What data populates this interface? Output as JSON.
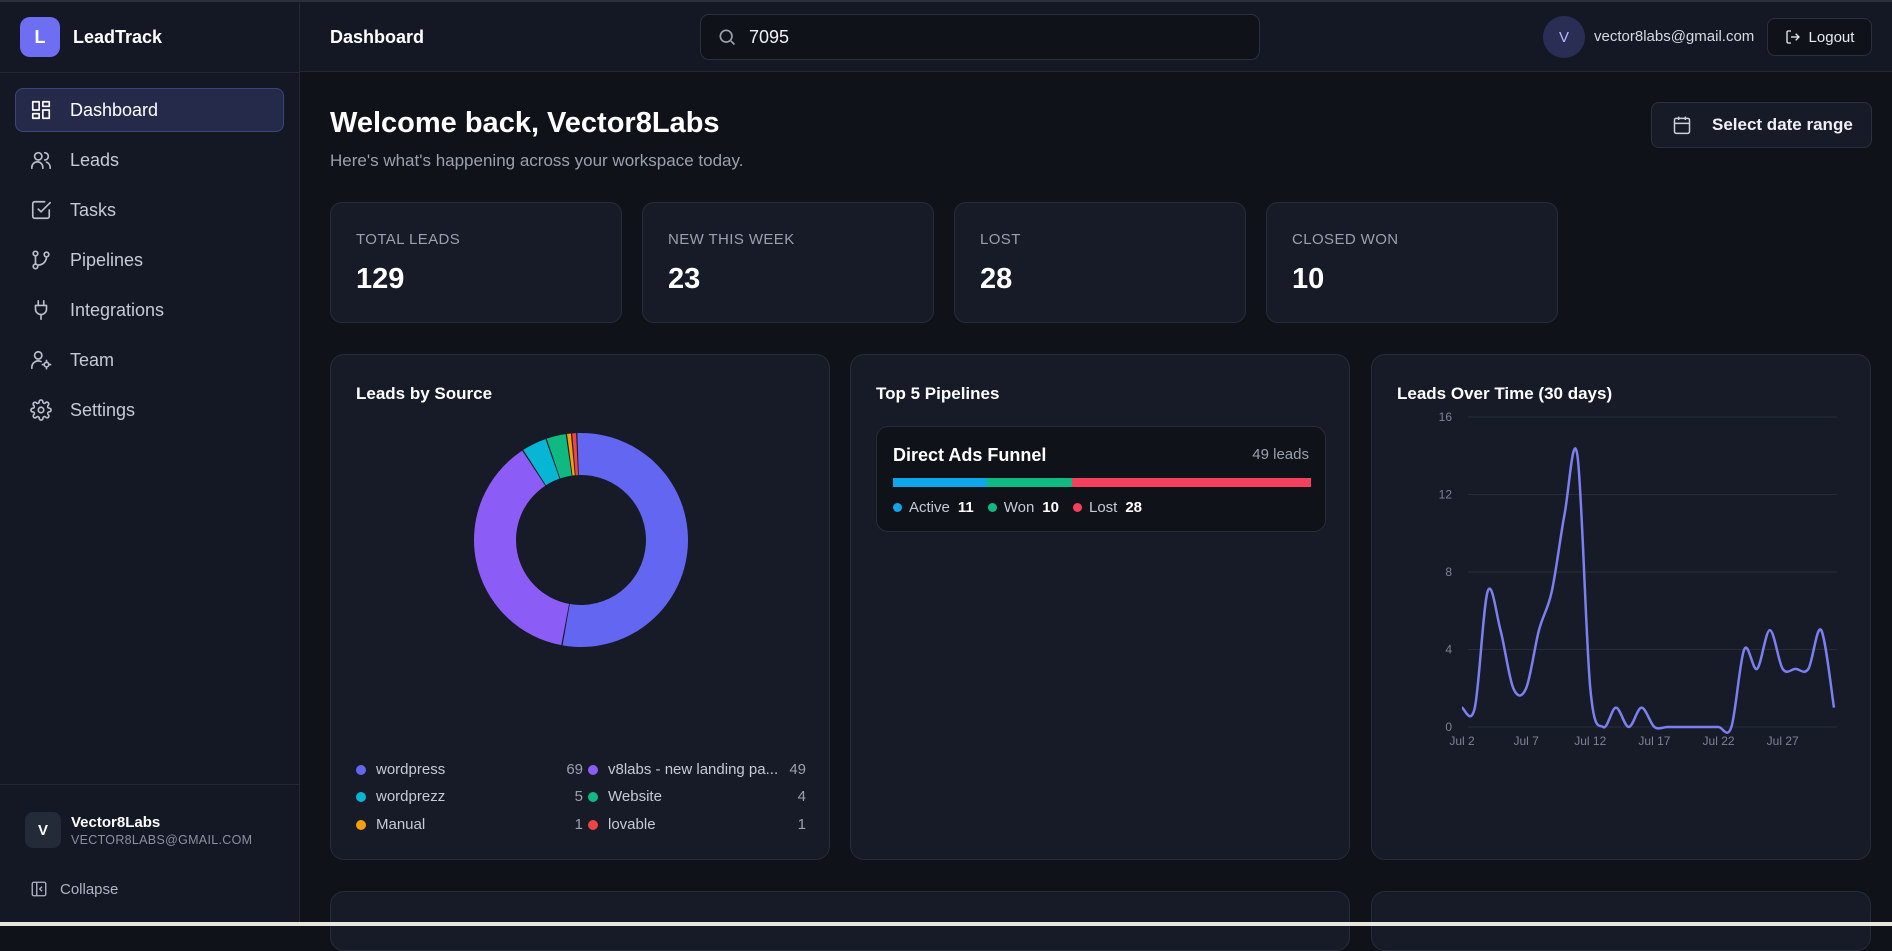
{
  "app": {
    "logo_letter": "L",
    "name": "LeadTrack"
  },
  "sidebar": {
    "items": [
      {
        "label": "Dashboard",
        "icon": "dashboard-icon",
        "active": true
      },
      {
        "label": "Leads",
        "icon": "users-icon"
      },
      {
        "label": "Tasks",
        "icon": "checkbox-icon"
      },
      {
        "label": "Pipelines",
        "icon": "git-branch-icon"
      },
      {
        "label": "Integrations",
        "icon": "plug-icon"
      },
      {
        "label": "Team",
        "icon": "user-cog-icon"
      },
      {
        "label": "Settings",
        "icon": "gear-icon"
      }
    ],
    "user": {
      "initial": "V",
      "name": "Vector8Labs",
      "email": "VECTOR8LABS@GMAIL.COM"
    },
    "collapse_label": "Collapse"
  },
  "header": {
    "title": "Dashboard",
    "search_value": "7095",
    "avatar_initial": "V",
    "email": "vector8labs@gmail.com",
    "logout_label": "Logout"
  },
  "main": {
    "welcome": "Welcome back, Vector8Labs",
    "subtitle": "Here's what's happening across your workspace today.",
    "date_range_label": "Select date range",
    "stats": [
      {
        "label": "TOTAL LEADS",
        "value": "129"
      },
      {
        "label": "NEW THIS WEEK",
        "value": "23"
      },
      {
        "label": "LOST",
        "value": "28"
      },
      {
        "label": "CLOSED WON",
        "value": "10"
      }
    ]
  },
  "sources": {
    "title": "Leads by Source",
    "items": [
      {
        "name": "wordpress",
        "value": 69,
        "color": "#6366f1"
      },
      {
        "name": "v8labs - new landing pa...",
        "value": 49,
        "color": "#8b5cf6"
      },
      {
        "name": "wordprezz",
        "value": 5,
        "color": "#06b6d4"
      },
      {
        "name": "Website",
        "value": 4,
        "color": "#10b981"
      },
      {
        "name": "Manual",
        "value": 1,
        "color": "#f59e0b"
      },
      {
        "name": "lovable",
        "value": 1,
        "color": "#ef4444"
      }
    ]
  },
  "pipelines": {
    "title": "Top 5 Pipelines",
    "items": [
      {
        "name": "Direct Ads Funnel",
        "leads_label": "49 leads",
        "active_label": "Active",
        "active": 11,
        "active_color": "#0ea5e9",
        "won_label": "Won",
        "won": 10,
        "won_color": "#10b981",
        "lost_label": "Lost",
        "lost": 28,
        "lost_color": "#f43f5e"
      }
    ]
  },
  "chart_data": {
    "type": "line",
    "title": "Leads Over Time (30 days)",
    "x_ticks": [
      "Jul 2",
      "Jul 7",
      "Jul 12",
      "Jul 17",
      "Jul 22",
      "Jul 27"
    ],
    "y_ticks": [
      0,
      4,
      8,
      12,
      16
    ],
    "ylim": [
      0,
      16
    ],
    "color": "#7c7ff0",
    "grid": true,
    "series": [
      {
        "x": [
          "Jul 2",
          "Jul 3",
          "Jul 4",
          "Jul 5",
          "Jul 6",
          "Jul 7",
          "Jul 8",
          "Jul 9",
          "Jul 10",
          "Jul 11",
          "Jul 12",
          "Jul 13",
          "Jul 14",
          "Jul 15",
          "Jul 16",
          "Jul 17",
          "Jul 18",
          "Jul 19",
          "Jul 20",
          "Jul 21",
          "Jul 22",
          "Jul 23",
          "Jul 24",
          "Jul 25",
          "Jul 26",
          "Jul 27",
          "Jul 28",
          "Jul 29",
          "Jul 30",
          "Jul 31"
        ],
        "values": [
          1,
          1,
          7,
          5,
          2,
          2,
          5,
          7,
          11,
          14,
          2,
          0,
          1,
          0,
          1,
          0,
          0,
          0,
          0,
          0,
          0,
          0,
          4,
          3,
          5,
          3,
          3,
          3,
          5,
          1
        ]
      }
    ]
  }
}
